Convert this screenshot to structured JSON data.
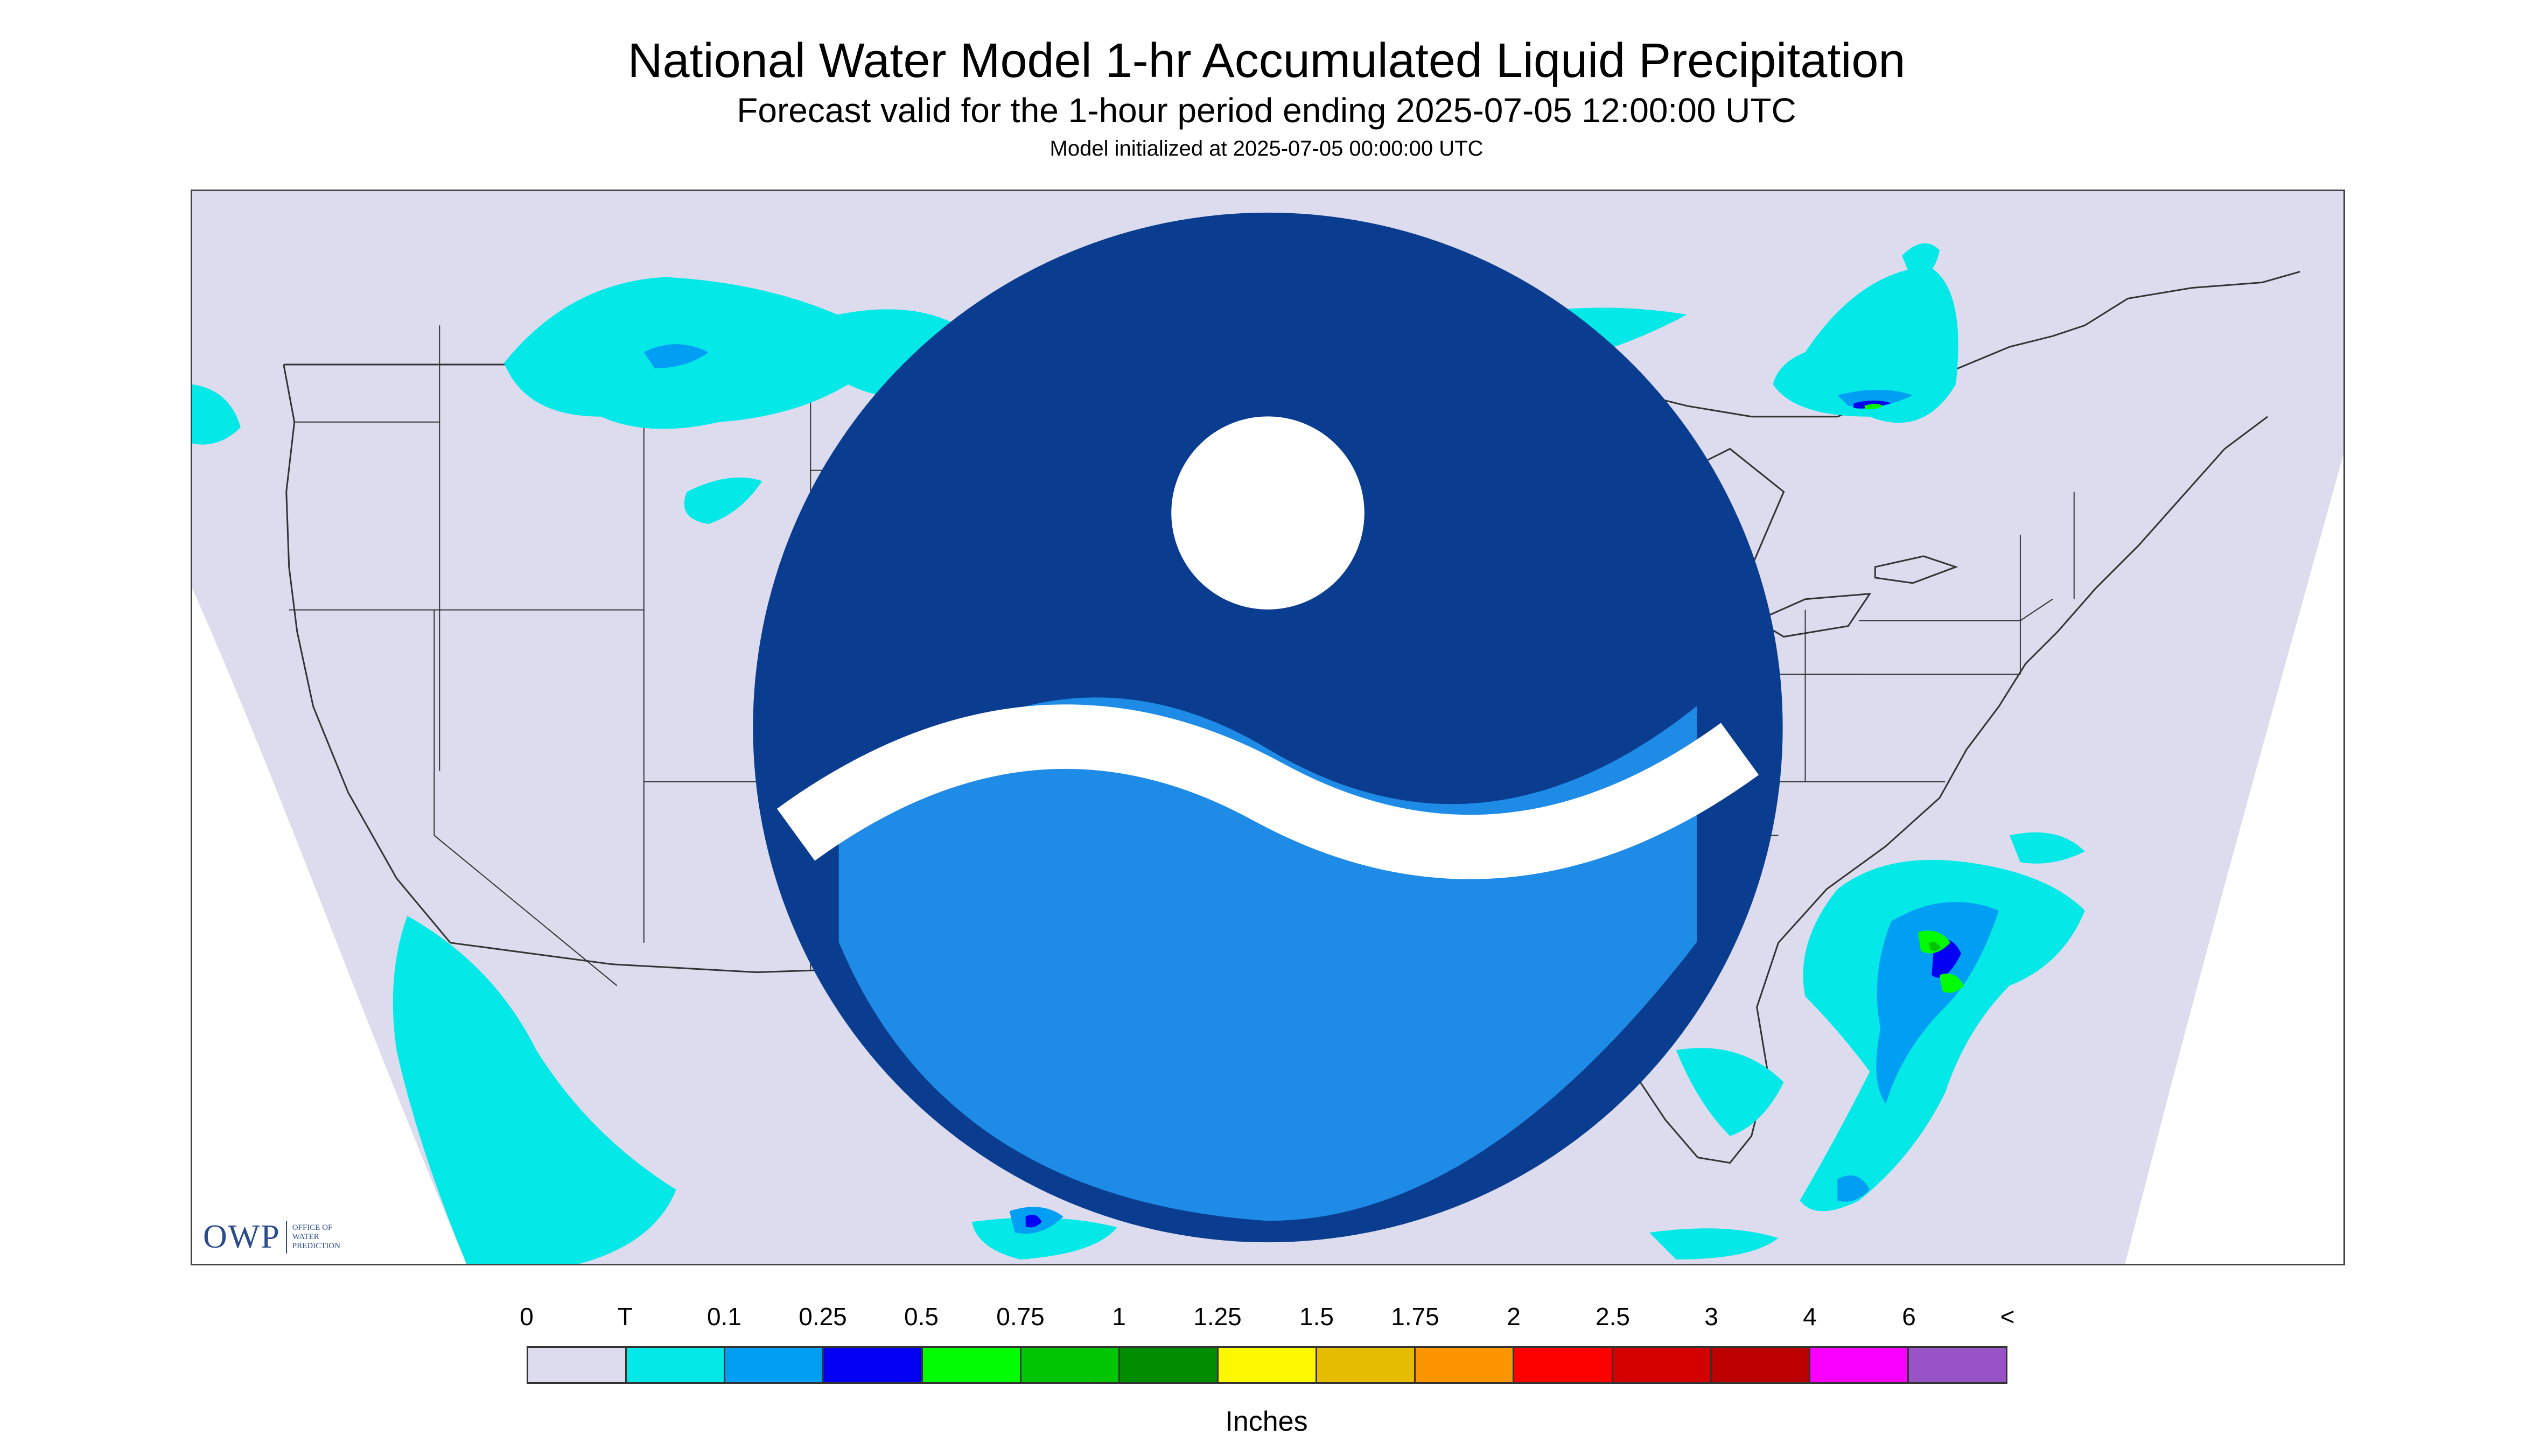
{
  "title": "National Water Model 1-hr Accumulated Liquid Precipitation",
  "subtitle": "Forecast valid for the 1-hour period ending 2025-07-05 12:00:00 UTC",
  "init_text": "Model initialized at 2025-07-05 00:00:00 UTC",
  "logos": {
    "owp_mark": "OWP",
    "owp_words": [
      "OFFICE OF",
      "WATER",
      "PREDICTION"
    ],
    "noaa": "NOAA"
  },
  "legend": {
    "labels": [
      "0",
      "T",
      "0.1",
      "0.25",
      "0.5",
      "0.75",
      "1",
      "1.25",
      "1.5",
      "1.75",
      "2",
      "2.5",
      "3",
      "4",
      "6",
      "<"
    ],
    "colors": [
      "#dcdcee",
      "#04e9e7",
      "#019ff4",
      "#0300f4",
      "#02fd02",
      "#01c501",
      "#008e00",
      "#fdf802",
      "#e5bc00",
      "#fd9500",
      "#fd0000",
      "#d40000",
      "#bc0000",
      "#f800fd",
      "#9854c6"
    ],
    "units": "Inches"
  },
  "map": {
    "background_color": "#dcdcee",
    "outside_color": "#ffffff",
    "precip_colors": {
      "trace": "#04e9e7",
      "light": "#019ff4",
      "moderate": "#0300f4",
      "heavy": "#02fd02",
      "heavier": "#01c501"
    }
  }
}
